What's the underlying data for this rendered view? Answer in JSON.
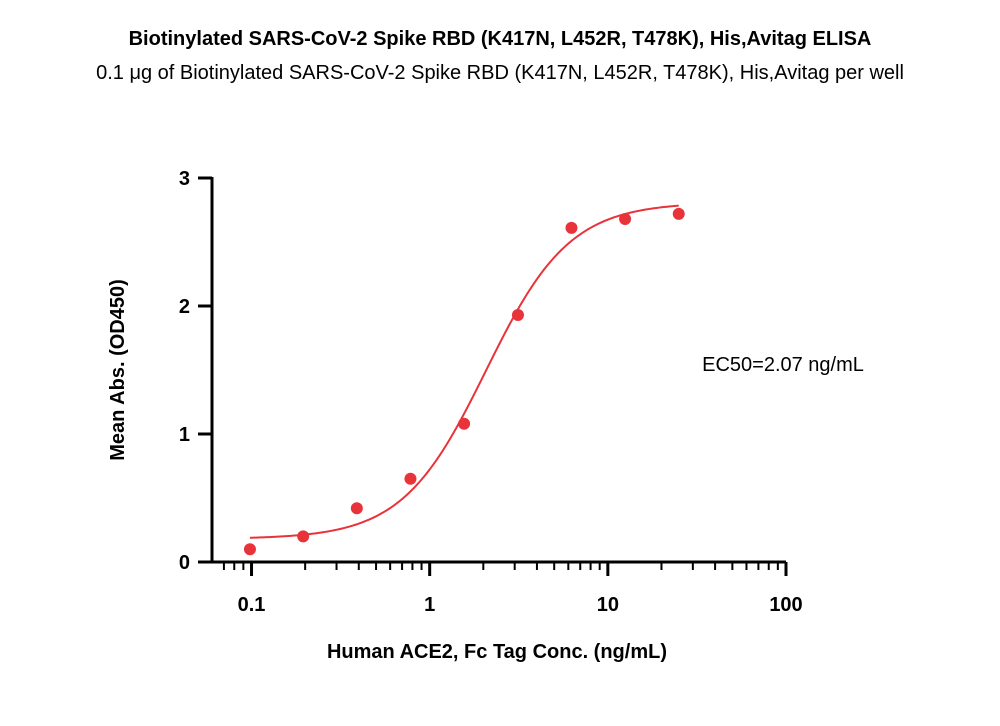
{
  "chart_data": {
    "type": "scatter",
    "title": "Biotinylated SARS-CoV-2 Spike RBD (K417N, L452R, T478K), His,Avitag ELISA",
    "subtitle": "0.1 μg of Biotinylated SARS-CoV-2 Spike RBD (K417N, L452R, T478K), His,Avitag per well",
    "xlabel": "Human ACE2, Fc Tag Conc. (ng/mL)",
    "ylabel": "Mean Abs. (OD450)",
    "x_scale": "log10",
    "xlim": [
      0.06,
      100
    ],
    "ylim": [
      0,
      3
    ],
    "x_ticks": [
      0.1,
      1,
      10,
      100
    ],
    "x_tick_labels": [
      "0.1",
      "1",
      "10",
      "100"
    ],
    "y_ticks": [
      0,
      1,
      2,
      3
    ],
    "y_tick_labels": [
      "0",
      "1",
      "2",
      "3"
    ],
    "points": [
      {
        "x": 0.098,
        "y": 0.1
      },
      {
        "x": 0.195,
        "y": 0.2
      },
      {
        "x": 0.39,
        "y": 0.42
      },
      {
        "x": 0.78,
        "y": 0.65
      },
      {
        "x": 1.56,
        "y": 1.08
      },
      {
        "x": 3.13,
        "y": 1.93
      },
      {
        "x": 6.25,
        "y": 2.61
      },
      {
        "x": 12.5,
        "y": 2.68
      },
      {
        "x": 25,
        "y": 2.72
      }
    ],
    "fit": {
      "bottom": 0.18,
      "top": 2.81,
      "ec50": 2.07,
      "hill": 1.85,
      "x_range": [
        0.098,
        25
      ]
    },
    "annotation": "EC50=2.07 ng/mL",
    "color": "#e8333a",
    "grid": false,
    "legend": "none"
  }
}
